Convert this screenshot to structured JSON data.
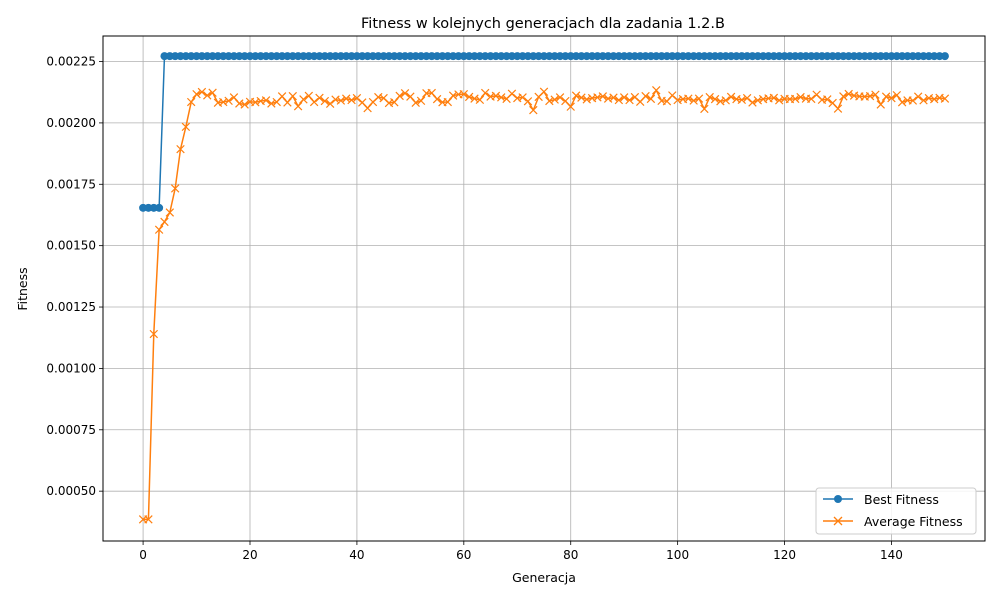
{
  "chart_data": {
    "type": "line",
    "title": "Fitness w kolejnych generacjach dla zadania 1.2.B",
    "xlabel": "Generacja",
    "ylabel": "Fitness",
    "xlim": [
      -7.5,
      157.5
    ],
    "ylim": [
      0.000297,
      0.002354
    ],
    "x_ticks": [
      0,
      20,
      40,
      60,
      80,
      100,
      120,
      140
    ],
    "y_ticks": [
      0.0005,
      0.00075,
      0.001,
      0.00125,
      0.0015,
      0.00175,
      0.002,
      0.00225
    ],
    "y_tick_labels": [
      "0.00050",
      "0.00075",
      "0.00100",
      "0.00125",
      "0.00150",
      "0.00175",
      "0.00200",
      "0.00225"
    ],
    "grid": true,
    "legend_position": "bottom-right",
    "x": [
      0,
      1,
      2,
      3,
      4,
      5,
      6,
      7,
      8,
      9,
      10,
      11,
      12,
      13,
      14,
      15,
      16,
      17,
      18,
      19,
      20,
      21,
      22,
      23,
      24,
      25,
      26,
      27,
      28,
      29,
      30,
      31,
      32,
      33,
      34,
      35,
      36,
      37,
      38,
      39,
      40,
      41,
      42,
      43,
      44,
      45,
      46,
      47,
      48,
      49,
      50,
      51,
      52,
      53,
      54,
      55,
      56,
      57,
      58,
      59,
      60,
      61,
      62,
      63,
      64,
      65,
      66,
      67,
      68,
      69,
      70,
      71,
      72,
      73,
      74,
      75,
      76,
      77,
      78,
      79,
      80,
      81,
      82,
      83,
      84,
      85,
      86,
      87,
      88,
      89,
      90,
      91,
      92,
      93,
      94,
      95,
      96,
      97,
      98,
      99,
      100,
      101,
      102,
      103,
      104,
      105,
      106,
      107,
      108,
      109,
      110,
      111,
      112,
      113,
      114,
      115,
      116,
      117,
      118,
      119,
      120,
      121,
      122,
      123,
      124,
      125,
      126,
      127,
      128,
      129,
      130,
      131,
      132,
      133,
      134,
      135,
      136,
      137,
      138,
      139,
      140,
      141,
      142,
      143,
      144,
      145,
      146,
      147,
      148,
      149,
      150
    ],
    "series": [
      {
        "name": "Best Fitness",
        "color": "#1f77b4",
        "marker": "circle",
        "values": [
          0.001654,
          0.001654,
          0.001654,
          0.001654,
          0.002272,
          0.002272,
          0.002272,
          0.002272,
          0.002272,
          0.002272,
          0.002272,
          0.002272,
          0.002272,
          0.002272,
          0.002272,
          0.002272,
          0.002272,
          0.002272,
          0.002272,
          0.002272,
          0.002272,
          0.002272,
          0.002272,
          0.002272,
          0.002272,
          0.002272,
          0.002272,
          0.002272,
          0.002272,
          0.002272,
          0.002272,
          0.002272,
          0.002272,
          0.002272,
          0.002272,
          0.002272,
          0.002272,
          0.002272,
          0.002272,
          0.002272,
          0.002272,
          0.002272,
          0.002272,
          0.002272,
          0.002272,
          0.002272,
          0.002272,
          0.002272,
          0.002272,
          0.002272,
          0.002272,
          0.002272,
          0.002272,
          0.002272,
          0.002272,
          0.002272,
          0.002272,
          0.002272,
          0.002272,
          0.002272,
          0.002272,
          0.002272,
          0.002272,
          0.002272,
          0.002272,
          0.002272,
          0.002272,
          0.002272,
          0.002272,
          0.002272,
          0.002272,
          0.002272,
          0.002272,
          0.002272,
          0.002272,
          0.002272,
          0.002272,
          0.002272,
          0.002272,
          0.002272,
          0.002272,
          0.002272,
          0.002272,
          0.002272,
          0.002272,
          0.002272,
          0.002272,
          0.002272,
          0.002272,
          0.002272,
          0.002272,
          0.002272,
          0.002272,
          0.002272,
          0.002272,
          0.002272,
          0.002272,
          0.002272,
          0.002272,
          0.002272,
          0.002272,
          0.002272,
          0.002272,
          0.002272,
          0.002272,
          0.002272,
          0.002272,
          0.002272,
          0.002272,
          0.002272,
          0.002272,
          0.002272,
          0.002272,
          0.002272,
          0.002272,
          0.002272,
          0.002272,
          0.002272,
          0.002272,
          0.002272,
          0.002272,
          0.002272,
          0.002272,
          0.002272,
          0.002272,
          0.002272,
          0.002272,
          0.002272,
          0.002272,
          0.002272,
          0.002272,
          0.002272,
          0.002272,
          0.002272,
          0.002272,
          0.002272,
          0.002272,
          0.002272,
          0.002272,
          0.002272,
          0.002272,
          0.002272,
          0.002272,
          0.002272,
          0.002272,
          0.002272,
          0.002272,
          0.002272,
          0.002272,
          0.002272,
          0.002272
        ]
      },
      {
        "name": "Average Fitness",
        "color": "#ff7f0e",
        "marker": "x",
        "values": [
          0.000385,
          0.000385,
          0.00114,
          0.001565,
          0.001597,
          0.001635,
          0.001733,
          0.001893,
          0.001984,
          0.002085,
          0.002117,
          0.002126,
          0.002112,
          0.002123,
          0.002082,
          0.002085,
          0.00209,
          0.002104,
          0.002079,
          0.002075,
          0.002086,
          0.002084,
          0.002089,
          0.002092,
          0.002079,
          0.002085,
          0.002108,
          0.002083,
          0.002109,
          0.002068,
          0.002096,
          0.00211,
          0.002085,
          0.002102,
          0.002089,
          0.002078,
          0.002095,
          0.002091,
          0.002099,
          0.002093,
          0.002101,
          0.002083,
          0.00206,
          0.002085,
          0.002105,
          0.002101,
          0.002081,
          0.002084,
          0.00211,
          0.002121,
          0.002107,
          0.002082,
          0.00209,
          0.002121,
          0.002122,
          0.002097,
          0.002084,
          0.002085,
          0.002111,
          0.002116,
          0.002117,
          0.002106,
          0.002099,
          0.002094,
          0.002122,
          0.002107,
          0.00211,
          0.002104,
          0.002098,
          0.002119,
          0.002101,
          0.002104,
          0.002088,
          0.002052,
          0.002106,
          0.002127,
          0.002089,
          0.002095,
          0.002104,
          0.002089,
          0.002066,
          0.002111,
          0.002103,
          0.002096,
          0.002101,
          0.002104,
          0.002108,
          0.002099,
          0.002103,
          0.002093,
          0.002104,
          0.002093,
          0.002105,
          0.002086,
          0.002109,
          0.002098,
          0.002133,
          0.00209,
          0.002088,
          0.002112,
          0.002093,
          0.002097,
          0.002099,
          0.002091,
          0.002099,
          0.002057,
          0.002105,
          0.002097,
          0.002088,
          0.002092,
          0.002106,
          0.002097,
          0.002094,
          0.002101,
          0.002083,
          0.002092,
          0.002097,
          0.0021,
          0.002102,
          0.002092,
          0.002098,
          0.002097,
          0.002098,
          0.002105,
          0.002099,
          0.002098,
          0.002115,
          0.002094,
          0.002096,
          0.002081,
          0.002058,
          0.002108,
          0.002118,
          0.002111,
          0.002108,
          0.002107,
          0.002109,
          0.002115,
          0.002075,
          0.002107,
          0.002101,
          0.002113,
          0.002084,
          0.002092,
          0.002091,
          0.002107,
          0.002092,
          0.002101,
          0.002097,
          0.002102,
          0.002099
        ]
      }
    ]
  }
}
